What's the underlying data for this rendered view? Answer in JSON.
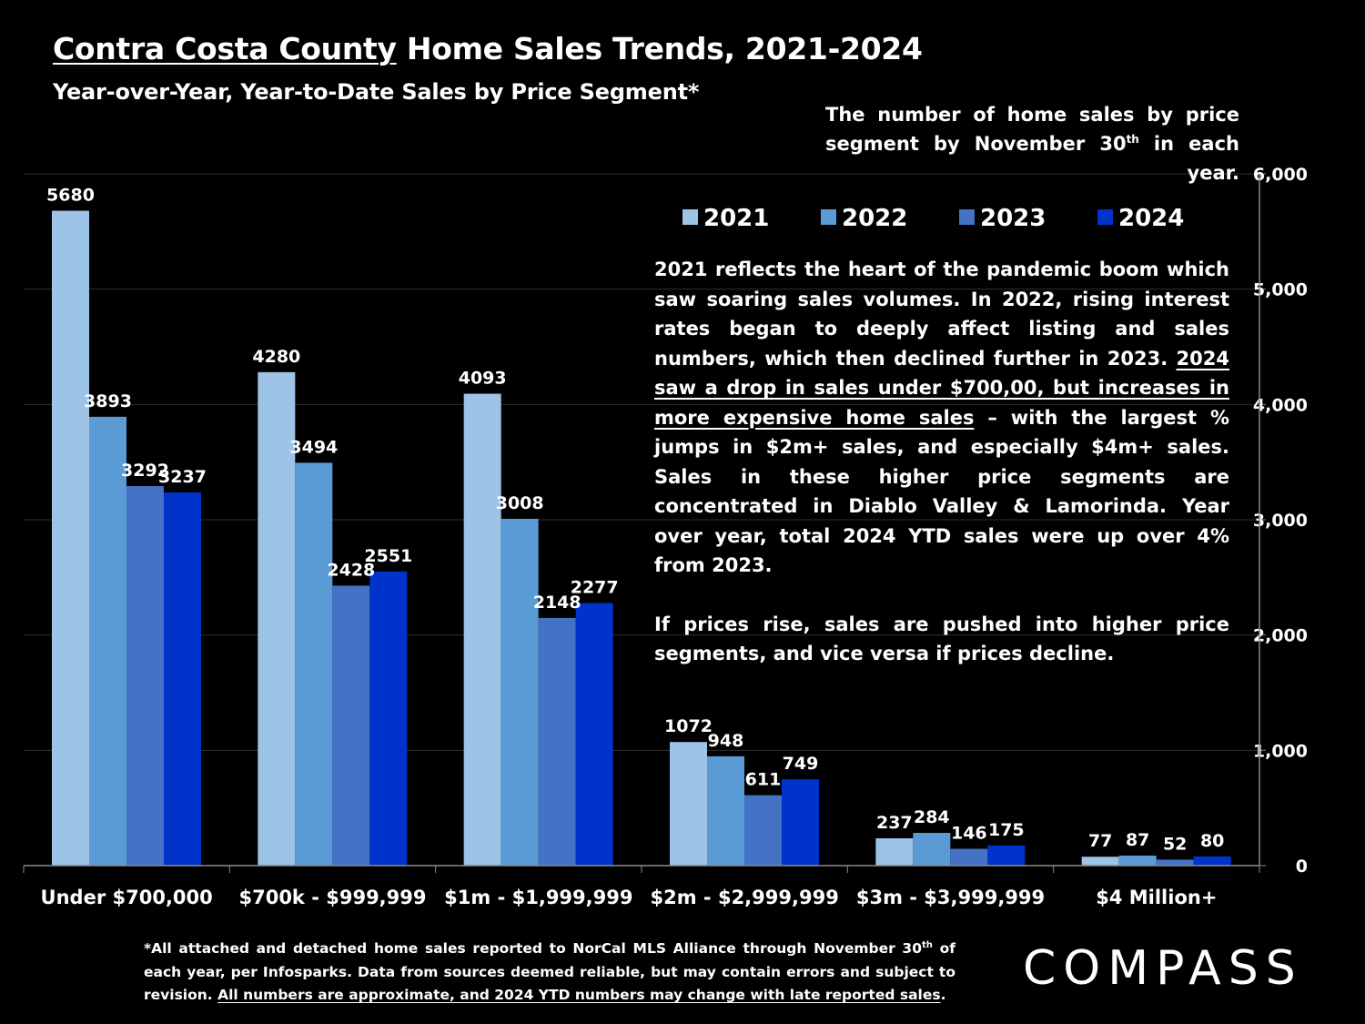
{
  "title": {
    "underlined": "Contra Costa County",
    "rest": " Home Sales Trends, 2021-2024"
  },
  "subtitle": "Year-over-Year, Year-to-Date Sales by Price Segment*",
  "top_note": {
    "before_sup": "The number of home sales by price segment by November 30",
    "sup": "th",
    "after_sup": " in each year."
  },
  "annotation": {
    "p1_start": "2021 reflects the heart of the pandemic boom which saw soaring sales volumes. In 2022, rising interest rates began to deeply affect listing and sales numbers, which then declined further in 2023. ",
    "p1_underlined": "2024 saw a drop in sales under $700,00, but increases in more expensive home sales",
    "p1_end": " – with the largest % jumps in $2m+ sales, and especially $4m+ sales. Sales in these higher price segments are concentrated in Diablo Valley & Lamorinda. Year over year, total 2024 YTD sales were up over 4% from 2023.",
    "p2": "If prices rise, sales are pushed into higher price segments, and vice versa if prices decline."
  },
  "footnote": {
    "part1": "*All attached and detached home sales reported to NorCal MLS Alliance through November 30",
    "sup": "th",
    "part2": " of each year, per Infosparks. Data from sources deemed reliable, but may contain errors and subject to revision. ",
    "underlined": "All numbers are approximate, and 2024 YTD numbers may change with late reported sales",
    "end": "."
  },
  "brand": "COMPASS",
  "chart_data": {
    "type": "bar",
    "categories": [
      "Under $700,000",
      "$700k - $999,999",
      "$1m - $1,999,999",
      "$2m - $2,999,999",
      "$3m - $3,999,999",
      "$4 Million+"
    ],
    "series": [
      {
        "name": "2021",
        "color": "#9DC3E6",
        "values": [
          5680,
          4280,
          4093,
          1072,
          237,
          77
        ]
      },
      {
        "name": "2022",
        "color": "#5B9BD5",
        "values": [
          3893,
          3494,
          3008,
          948,
          284,
          87
        ]
      },
      {
        "name": "2023",
        "color": "#4472C4",
        "values": [
          3292,
          2428,
          2148,
          611,
          146,
          52
        ]
      },
      {
        "name": "2024",
        "color": "#0033CC",
        "values": [
          3237,
          2551,
          2277,
          749,
          175,
          80
        ]
      }
    ],
    "ylim": [
      0,
      6000
    ],
    "yticks": [
      "0",
      "1,000",
      "2,000",
      "3,000",
      "4,000",
      "5,000",
      "6,000"
    ],
    "y_axis_side": "right",
    "grid": true,
    "legend_position": "top-right"
  }
}
